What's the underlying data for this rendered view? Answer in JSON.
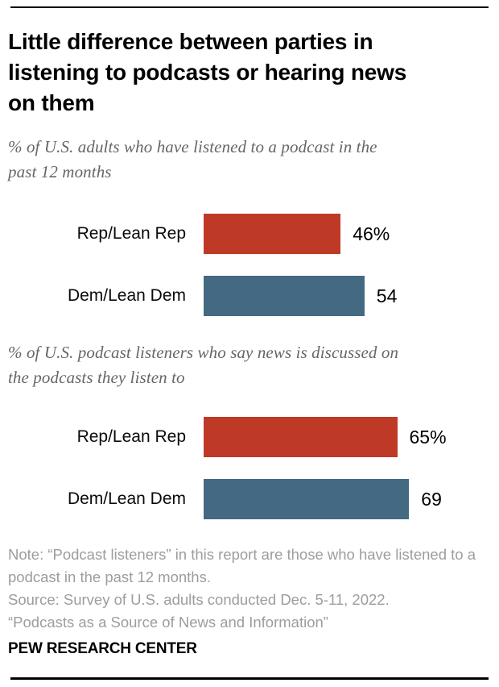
{
  "header": {
    "title": "Little difference between parties in listening to podcasts or hearing news on them",
    "title_lines": [
      "Little difference between parties in",
      "listening to podcasts or hearing news",
      "on them"
    ]
  },
  "chart_data": [
    {
      "type": "bar",
      "orientation": "horizontal",
      "title": "% of U.S. adults who have listened to a podcast in the past 12 months",
      "title_lines": [
        "% of U.S. adults who have listened to a podcast in the",
        "past 12 months"
      ],
      "categories": [
        "Rep/Lean Rep",
        "Dem/Lean Dem"
      ],
      "values": [
        46,
        54
      ],
      "value_labels": [
        "46%",
        "54"
      ],
      "colors": [
        "#bf3927",
        "#436983"
      ],
      "xlim": [
        0,
        100
      ],
      "grid": false,
      "legend": "none"
    },
    {
      "type": "bar",
      "orientation": "horizontal",
      "title": "% of U.S. podcast listeners who say news is discussed on the podcasts they listen to",
      "title_lines": [
        "% of U.S. podcast listeners who say news is discussed on",
        "the podcasts they listen to"
      ],
      "categories": [
        "Rep/Lean Rep",
        "Dem/Lean Dem"
      ],
      "values": [
        65,
        69
      ],
      "value_labels": [
        "65%",
        "69"
      ],
      "colors": [
        "#bf3927",
        "#436983"
      ],
      "xlim": [
        0,
        100
      ],
      "grid": false,
      "legend": "none"
    }
  ],
  "footer": {
    "note": "Note: “Podcast listeners” in this report are those who have listened to a podcast in the past 12 months.",
    "source": "Source: Survey of U.S. adults conducted Dec. 5-11, 2022.",
    "attribution": "“Podcasts as a Source of News and Information”",
    "brand": "PEW RESEARCH CENTER"
  },
  "colors": {
    "republican": "#bf3927",
    "democrat": "#436983",
    "subtitle_gray": "#666666",
    "note_gray": "#9d9d9d",
    "rule_black": "#000000"
  }
}
